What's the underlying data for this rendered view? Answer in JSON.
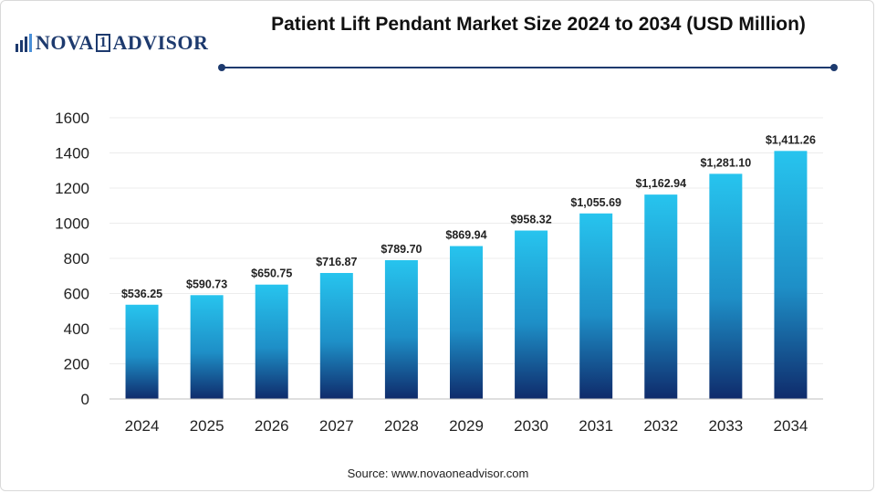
{
  "brand": {
    "logo_part1": "NOVA",
    "logo_box": "1",
    "logo_part2": "ADVISOR"
  },
  "colors": {
    "bar_top": "#27c4ee",
    "bar_mid": "#1e8fc7",
    "bar_bottom": "#0f2b6b",
    "accent": "#1d3a6e"
  },
  "source_text": "Source: www.novaoneadvisor.com",
  "chart_data": {
    "type": "bar",
    "title": "Patient Lift Pendant Market Size 2024 to 2034 (USD Million)",
    "xlabel": "",
    "ylabel": "",
    "categories": [
      "2024",
      "2025",
      "2026",
      "2027",
      "2028",
      "2029",
      "2030",
      "2031",
      "2032",
      "2033",
      "2034"
    ],
    "values": [
      536.25,
      590.73,
      650.75,
      716.87,
      789.7,
      869.94,
      958.32,
      1055.69,
      1162.94,
      1281.1,
      1411.26
    ],
    "data_labels": [
      "$536.25",
      "$590.73",
      "$650.75",
      "$716.87",
      "$789.70",
      "$869.94",
      "$958.32",
      "$1,055.69",
      "$1,162.94",
      "$1,281.10",
      "$1,411.26"
    ],
    "ylim": [
      0,
      1600
    ],
    "yticks": [
      0,
      200,
      400,
      600,
      800,
      1000,
      1200,
      1400,
      1600
    ],
    "grid": true
  }
}
